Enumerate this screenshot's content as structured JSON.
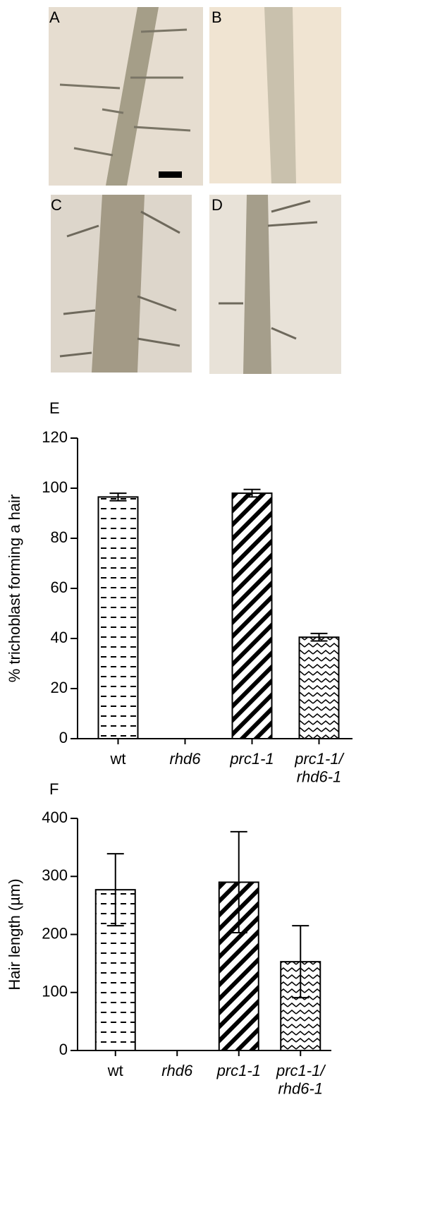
{
  "panels": [
    {
      "label": "A"
    },
    {
      "label": "B"
    },
    {
      "label": "C"
    },
    {
      "label": "D"
    }
  ],
  "chart_data": [
    {
      "type": "bar",
      "panel_label": "E",
      "ylabel": "% trichoblast forming a hair",
      "categories": [
        "wt",
        "rhd6",
        "prc1-1",
        "prc1-1/\nrhd6-1"
      ],
      "italic_categories": [
        false,
        true,
        true,
        true
      ],
      "values": [
        96.5,
        0,
        98,
        40.5
      ],
      "errors": [
        1.5,
        0,
        1.5,
        1.5
      ],
      "patterns": [
        "dash",
        "dash",
        "diagonal",
        "zigzag"
      ],
      "ylim": [
        0,
        120
      ],
      "yticks": [
        0,
        20,
        40,
        60,
        80,
        100,
        120
      ]
    },
    {
      "type": "bar",
      "panel_label": "F",
      "ylabel": "Hair length (µm)",
      "categories": [
        "wt",
        "rhd6",
        "prc1-1",
        "prc1-1/\nrhd6-1"
      ],
      "italic_categories": [
        false,
        true,
        true,
        true
      ],
      "values": [
        277,
        0,
        290,
        153
      ],
      "errors": [
        62,
        0,
        87,
        62
      ],
      "patterns": [
        "dash",
        "dash",
        "diagonal",
        "zigzag"
      ],
      "ylim": [
        0,
        400
      ],
      "yticks": [
        0,
        100,
        200,
        300,
        400
      ]
    }
  ]
}
